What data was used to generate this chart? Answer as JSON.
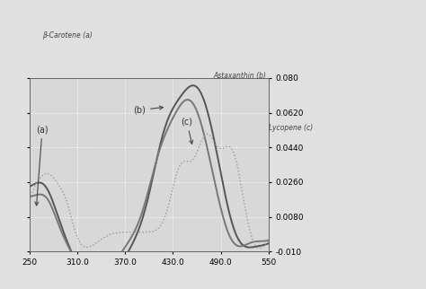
{
  "xlim": [
    250,
    550
  ],
  "ylim": [
    -0.01,
    0.08
  ],
  "xticks": [
    250,
    310.0,
    370.0,
    430.0,
    490.0,
    550
  ],
  "xtick_labels": [
    "250",
    "310.0",
    "370.0",
    "430.0",
    "490.0",
    "550"
  ],
  "yticks": [
    -0.01,
    0.008,
    0.026,
    0.044,
    0.062,
    0.08
  ],
  "ytick_labels": [
    "-0.010",
    "0.0080",
    "0.0260",
    "0.0440",
    "0.0620",
    "0.080"
  ],
  "bg_color": "#d8d8d8",
  "plot_bg": "#d8d8d8",
  "grid_color": "#ffffff",
  "line_a_color": "#555555",
  "line_b_color": "#777777",
  "line_c_color": "#999999"
}
